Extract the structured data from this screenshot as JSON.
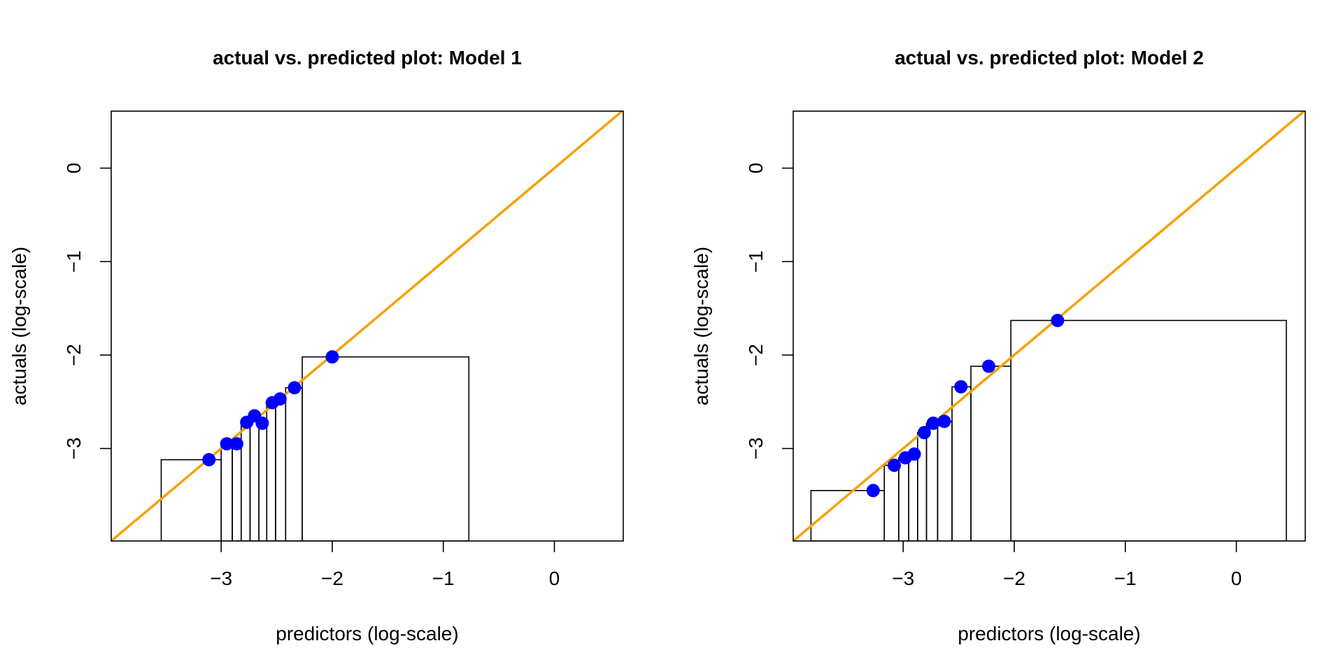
{
  "colors": {
    "reference_line": "#f5a10a",
    "points": "#0000ff",
    "bins": "#000000",
    "frame": "#000000"
  },
  "chart_data": [
    {
      "type": "scatter",
      "title": "actual vs. predicted plot: Model 1",
      "xlabel": "predictors (log-scale)",
      "ylabel": "actuals (log-scale)",
      "xlim": [
        -3.99,
        0.62
      ],
      "ylim": [
        -3.99,
        0.61
      ],
      "xticks": [
        -3,
        -2,
        -1,
        0
      ],
      "yticks": [
        -3,
        -2,
        -1,
        0
      ],
      "reference_line": "y = x",
      "points": [
        {
          "x": -3.11,
          "y": -3.12
        },
        {
          "x": -2.95,
          "y": -2.95
        },
        {
          "x": -2.86,
          "y": -2.95
        },
        {
          "x": -2.77,
          "y": -2.72
        },
        {
          "x": -2.7,
          "y": -2.65
        },
        {
          "x": -2.63,
          "y": -2.73
        },
        {
          "x": -2.54,
          "y": -2.51
        },
        {
          "x": -2.47,
          "y": -2.47
        },
        {
          "x": -2.34,
          "y": -2.35
        },
        {
          "x": -2.0,
          "y": -2.02
        }
      ],
      "bins": [
        {
          "x0": -3.54,
          "x1": -3.0,
          "y": -3.12
        },
        {
          "x0": -3.0,
          "x1": -2.9,
          "y": -2.95
        },
        {
          "x0": -2.9,
          "x1": -2.82,
          "y": -2.95
        },
        {
          "x0": -2.82,
          "x1": -2.74,
          "y": -2.72
        },
        {
          "x0": -2.74,
          "x1": -2.66,
          "y": -2.65
        },
        {
          "x0": -2.66,
          "x1": -2.59,
          "y": -2.73
        },
        {
          "x0": -2.59,
          "x1": -2.51,
          "y": -2.51
        },
        {
          "x0": -2.51,
          "x1": -2.42,
          "y": -2.47
        },
        {
          "x0": -2.42,
          "x1": -2.27,
          "y": -2.35
        },
        {
          "x0": -2.27,
          "x1": -0.77,
          "y": -2.02
        }
      ]
    },
    {
      "type": "scatter",
      "title": "actual vs. predicted plot: Model 2",
      "xlabel": "predictors (log-scale)",
      "ylabel": "actuals (log-scale)",
      "xlim": [
        -3.99,
        0.62
      ],
      "ylim": [
        -3.99,
        0.61
      ],
      "xticks": [
        -3,
        -2,
        -1,
        0
      ],
      "yticks": [
        -3,
        -2,
        -1,
        0
      ],
      "reference_line": "y = x",
      "points": [
        {
          "x": -3.27,
          "y": -3.45
        },
        {
          "x": -3.08,
          "y": -3.18
        },
        {
          "x": -2.98,
          "y": -3.1
        },
        {
          "x": -2.9,
          "y": -3.06
        },
        {
          "x": -2.81,
          "y": -2.83
        },
        {
          "x": -2.73,
          "y": -2.73
        },
        {
          "x": -2.63,
          "y": -2.71
        },
        {
          "x": -2.48,
          "y": -2.34
        },
        {
          "x": -2.23,
          "y": -2.12
        },
        {
          "x": -1.61,
          "y": -1.63
        }
      ],
      "bins": [
        {
          "x0": -3.83,
          "x1": -3.17,
          "y": -3.45
        },
        {
          "x0": -3.17,
          "x1": -3.04,
          "y": -3.18
        },
        {
          "x0": -3.04,
          "x1": -2.95,
          "y": -3.1
        },
        {
          "x0": -2.95,
          "x1": -2.87,
          "y": -3.06
        },
        {
          "x0": -2.87,
          "x1": -2.79,
          "y": -2.83
        },
        {
          "x0": -2.79,
          "x1": -2.69,
          "y": -2.73
        },
        {
          "x0": -2.69,
          "x1": -2.56,
          "y": -2.71
        },
        {
          "x0": -2.56,
          "x1": -2.39,
          "y": -2.34
        },
        {
          "x0": -2.39,
          "x1": -2.03,
          "y": -2.12
        },
        {
          "x0": -2.03,
          "x1": 0.45,
          "y": -1.63
        }
      ]
    }
  ]
}
